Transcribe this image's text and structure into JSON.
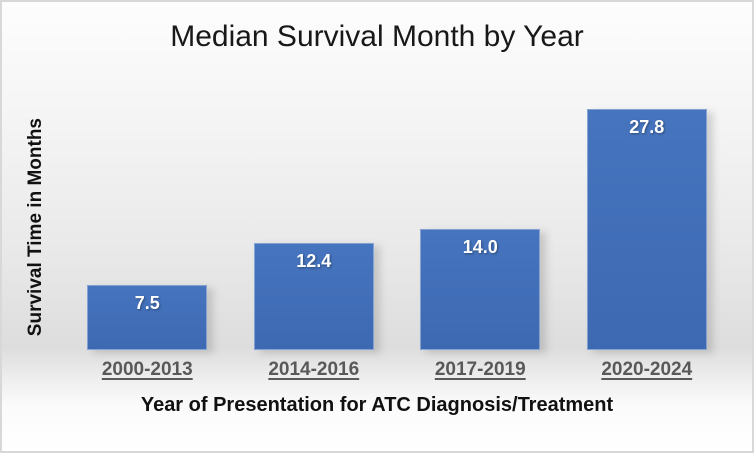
{
  "chart_data": {
    "type": "bar",
    "title": "Median Survival Month by Year",
    "categories": [
      "2000-2013",
      "2014-2016",
      "2017-2019",
      "2020-2024"
    ],
    "values": [
      7.5,
      12.4,
      14.0,
      27.8
    ],
    "data_labels": [
      "7.5",
      "12.4",
      "14.0",
      "27.8"
    ],
    "xlabel": "Year of Presentation for ATC Diagnosis/Treatment",
    "ylabel": "Survival Time in Months",
    "ylim": [
      0,
      30
    ],
    "grid": false,
    "legend": false,
    "bar_color": "#3e6cb5",
    "data_label_color": "#ffffff",
    "category_label_color": "#595959",
    "title_color": "#181818"
  }
}
